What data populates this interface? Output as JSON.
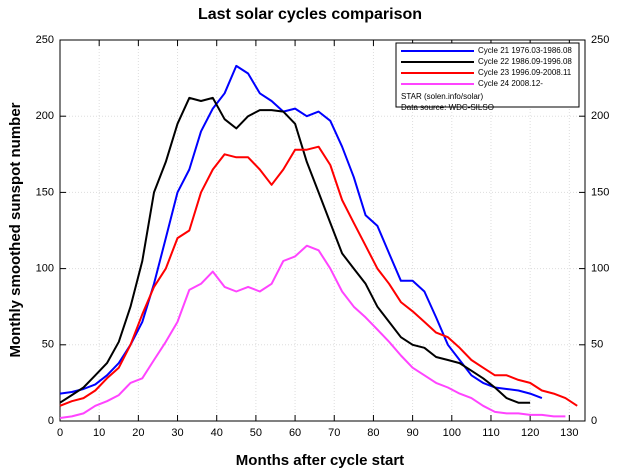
{
  "chart_data": {
    "type": "line",
    "title": "Last solar cycles comparison",
    "xlabel": "Months after cycle start",
    "ylabel": "Monthly smoothed sunspot number",
    "annotations": [
      "STAR (solen.info/solar)",
      "Data source: WDC-SILSO"
    ],
    "x": [
      0,
      3,
      6,
      9,
      12,
      15,
      18,
      21,
      24,
      27,
      30,
      33,
      36,
      39,
      42,
      45,
      48,
      51,
      54,
      57,
      60,
      63,
      66,
      69,
      72,
      75,
      78,
      81,
      84,
      87,
      90,
      93,
      96,
      99,
      102,
      105,
      108,
      111,
      114,
      117,
      120,
      123,
      126,
      129,
      132
    ],
    "series": [
      {
        "name": "Cycle 21 1976.03-1986.08",
        "color": "#0000ff",
        "values": [
          18,
          19,
          21,
          24,
          30,
          38,
          50,
          65,
          90,
          120,
          150,
          165,
          190,
          205,
          215,
          233,
          228,
          215,
          210,
          203,
          205,
          200,
          203,
          197,
          180,
          160,
          135,
          128,
          110,
          92,
          92,
          85,
          68,
          50,
          40,
          30,
          25,
          22,
          21,
          20,
          18,
          15,
          null,
          null,
          null
        ]
      },
      {
        "name": "Cycle 22 1986.09-1996.08",
        "color": "#000000",
        "values": [
          12,
          17,
          22,
          30,
          38,
          52,
          75,
          105,
          150,
          170,
          195,
          212,
          210,
          212,
          198,
          192,
          200,
          204,
          204,
          203,
          195,
          170,
          150,
          130,
          110,
          100,
          90,
          75,
          65,
          55,
          50,
          48,
          42,
          40,
          38,
          33,
          28,
          22,
          15,
          12,
          12,
          null,
          null,
          null,
          null
        ]
      },
      {
        "name": "Cycle 23 1996.09-2008.11",
        "color": "#ff0000",
        "values": [
          10,
          13,
          15,
          20,
          28,
          35,
          50,
          70,
          88,
          100,
          120,
          125,
          150,
          165,
          175,
          173,
          173,
          165,
          155,
          165,
          178,
          178,
          180,
          168,
          145,
          130,
          115,
          100,
          90,
          78,
          72,
          65,
          58,
          55,
          48,
          40,
          35,
          30,
          30,
          27,
          25,
          20,
          18,
          15,
          10
        ]
      },
      {
        "name": "Cycle 24 2008.12-",
        "color": "#ff44ff",
        "values": [
          2,
          3,
          5,
          10,
          13,
          17,
          25,
          28,
          40,
          52,
          65,
          86,
          90,
          98,
          88,
          85,
          88,
          85,
          90,
          105,
          108,
          115,
          112,
          100,
          85,
          75,
          68,
          60,
          52,
          43,
          35,
          30,
          25,
          22,
          18,
          15,
          10,
          6,
          5,
          5,
          4,
          4,
          3,
          3,
          null
        ]
      }
    ],
    "xlim": [
      0,
      134
    ],
    "xticks": [
      0,
      10,
      20,
      30,
      40,
      50,
      60,
      70,
      80,
      90,
      100,
      110,
      120,
      130
    ],
    "ylim": [
      0,
      250
    ],
    "yticks": [
      0,
      50,
      100,
      150,
      200,
      250
    ],
    "grid": true,
    "legend": "upper right"
  }
}
